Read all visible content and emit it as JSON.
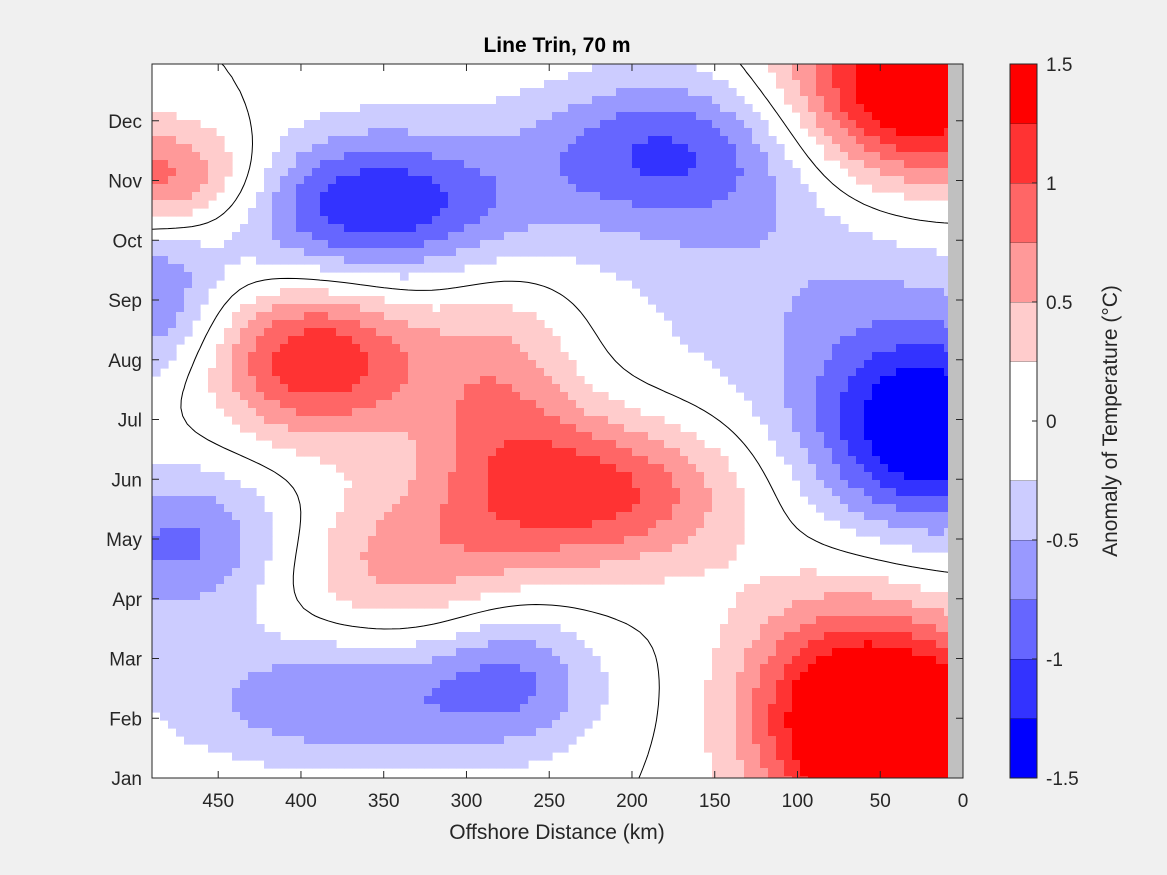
{
  "chart_data": {
    "type": "heatmap",
    "title": "Line Trin, 70 m",
    "xlabel": "Offshore Distance (km)",
    "ylabel": "",
    "xlim": [
      490,
      0
    ],
    "x_reversed": true,
    "x_ticks": [
      "450",
      "400",
      "350",
      "300",
      "250",
      "200",
      "150",
      "100",
      "50",
      "0"
    ],
    "y_ticks": [
      "Jan",
      "Feb",
      "Mar",
      "Apr",
      "May",
      "Jun",
      "Jul",
      "Aug",
      "Sep",
      "Oct",
      "Nov",
      "Dec"
    ],
    "colorbar": {
      "label": "Anomaly of Temperature (°C)",
      "range": [
        -1.5,
        1.5
      ],
      "ticks": [
        "-1.5",
        "-1",
        "-0.5",
        "0",
        "0.5",
        "1",
        "1.5"
      ],
      "levels": [
        {
          "min": -1.5,
          "max": -1.25,
          "color": "#0000ff"
        },
        {
          "min": -1.25,
          "max": -1.0,
          "color": "#3333ff"
        },
        {
          "min": -1.0,
          "max": -0.75,
          "color": "#6666ff"
        },
        {
          "min": -0.75,
          "max": -0.5,
          "color": "#9999ff"
        },
        {
          "min": -0.5,
          "max": -0.25,
          "color": "#ccccff"
        },
        {
          "min": -0.25,
          "max": 0.25,
          "color": "#ffffff"
        },
        {
          "min": 0.25,
          "max": 0.5,
          "color": "#ffcccc"
        },
        {
          "min": 0.5,
          "max": 0.75,
          "color": "#ff9999"
        },
        {
          "min": 0.75,
          "max": 1.0,
          "color": "#ff6666"
        },
        {
          "min": 1.0,
          "max": 1.25,
          "color": "#ff3333"
        },
        {
          "min": 1.25,
          "max": 1.5,
          "color": "#ff0000"
        }
      ]
    },
    "anomaly_features": [
      {
        "kind": "warm",
        "x_km": 15,
        "month": 1.2,
        "amplitude": 1.9,
        "sx_km": 55,
        "sy_months": 1.4
      },
      {
        "kind": "warm",
        "x_km": 75,
        "month": 2.3,
        "amplitude": 1.1,
        "sx_km": 45,
        "sy_months": 1.3
      },
      {
        "kind": "warm",
        "x_km": 220,
        "month": 5.8,
        "amplitude": 1.1,
        "sx_km": 60,
        "sy_months": 0.9
      },
      {
        "kind": "warm",
        "x_km": 280,
        "month": 7.5,
        "amplitude": 0.65,
        "sx_km": 35,
        "sy_months": 1.3
      },
      {
        "kind": "warm",
        "x_km": 390,
        "month": 8.0,
        "amplitude": 1.25,
        "sx_km": 45,
        "sy_months": 0.9
      },
      {
        "kind": "warm",
        "x_km": 480,
        "month": 11.0,
        "amplitude": 1.05,
        "sx_km": 45,
        "sy_months": 0.7
      },
      {
        "kind": "warm",
        "x_km": 30,
        "month": 12.5,
        "amplitude": 1.8,
        "sx_km": 55,
        "sy_months": 1.2
      },
      {
        "kind": "warm",
        "x_km": 340,
        "month": 4.6,
        "amplitude": 0.6,
        "sx_km": 60,
        "sy_months": 0.9
      },
      {
        "kind": "cool",
        "x_km": 20,
        "month": 6.8,
        "amplitude": -1.5,
        "sx_km": 50,
        "sy_months": 1.2
      },
      {
        "kind": "cool",
        "x_km": 360,
        "month": 10.6,
        "amplitude": -1.25,
        "sx_km": 65,
        "sy_months": 0.9
      },
      {
        "kind": "cool",
        "x_km": 180,
        "month": 11.5,
        "amplitude": -0.9,
        "sx_km": 60,
        "sy_months": 0.9
      },
      {
        "kind": "cool",
        "x_km": 370,
        "month": 2.3,
        "amplitude": -0.75,
        "sx_km": 80,
        "sy_months": 0.8
      },
      {
        "kind": "cool",
        "x_km": 270,
        "month": 2.8,
        "amplitude": -0.55,
        "sx_km": 35,
        "sy_months": 0.9
      },
      {
        "kind": "cool",
        "x_km": 470,
        "month": 4.9,
        "amplitude": -0.85,
        "sx_km": 50,
        "sy_months": 0.9
      },
      {
        "kind": "cool",
        "x_km": 490,
        "month": 9.0,
        "amplitude": -0.75,
        "sx_km": 30,
        "sy_months": 1.0
      },
      {
        "kind": "cool",
        "x_km": 90,
        "month": 9.5,
        "amplitude": -0.45,
        "sx_km": 90,
        "sy_months": 2.0
      }
    ]
  }
}
